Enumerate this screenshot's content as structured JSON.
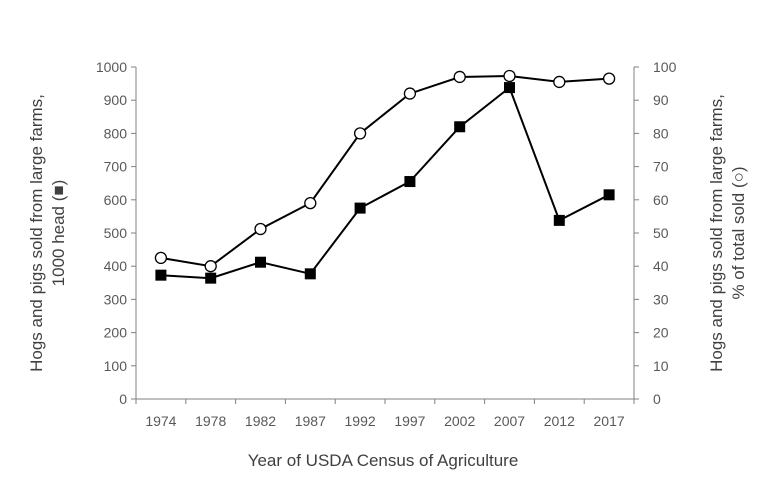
{
  "chart_data": {
    "type": "line",
    "categories": [
      "1974",
      "1978",
      "1982",
      "1987",
      "1992",
      "1997",
      "2002",
      "2007",
      "2012",
      "2017"
    ],
    "xlabel": "Year of USDA Census of Agriculture",
    "ylabel": "Hogs and pigs sold from large farms,",
    "ylabel_line2": "1000 head (■)",
    "y2label": "Hogs and pigs sold from large farms,",
    "y2label_line2": "% of total sold (○)",
    "ylim": [
      0,
      1000
    ],
    "y2lim": [
      0,
      100
    ],
    "yticks": [
      0,
      100,
      200,
      300,
      400,
      500,
      600,
      700,
      800,
      900,
      1000
    ],
    "y2ticks": [
      0,
      10,
      20,
      30,
      40,
      50,
      60,
      70,
      80,
      90,
      100
    ],
    "grid": false,
    "series": [
      {
        "marker": "filled-square",
        "axis": "left",
        "color": "#000000",
        "values": [
          373,
          364,
          412,
          377,
          575,
          655,
          820,
          938,
          538,
          615
        ]
      },
      {
        "marker": "open-circle",
        "axis": "right",
        "color": "#000000",
        "values": [
          42.5,
          40,
          51.2,
          59,
          80,
          92,
          97,
          97.3,
          95.5,
          96.5
        ]
      }
    ]
  }
}
